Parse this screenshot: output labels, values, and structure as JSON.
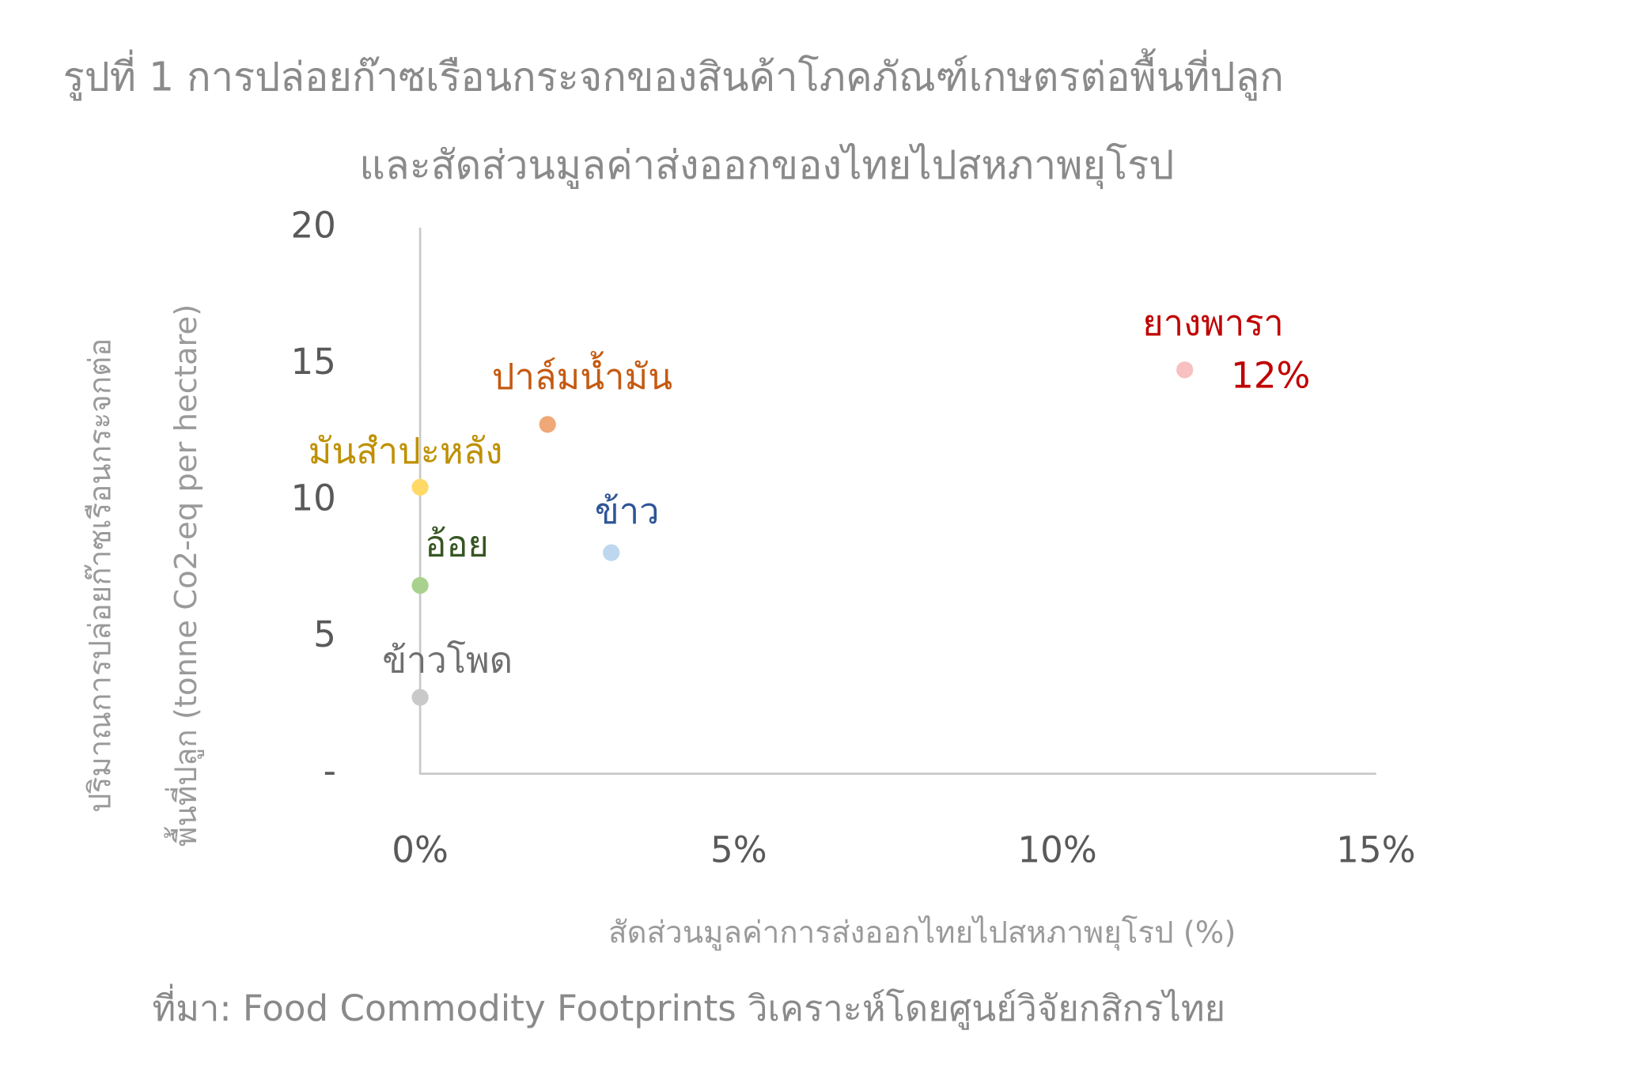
{
  "chart_data": {
    "type": "scatter",
    "title": [
      "รูปที่ 1 การปล่อยก๊าซเรือนกระจกของสินค้าโภคภัณฑ์เกษตรต่อพื้นที่ปลูก",
      "และสัดส่วนมูลค่าส่งออกของไทยไปสหภาพยุโรป"
    ],
    "x_label": "สัดส่วนมูลค่าการส่งออกไทยไปสหภาพยุโรป (%)",
    "y_label": [
      "ปริมาณการปล่อยก๊าซเรือนกระจกต่อ",
      "พื้นที่ปลูก  (tonne Co2-eq per hectare)"
    ],
    "source": "ที่มา: Food Commodity Footprints วิเคราะห์โดยศูนย์วิจัยกสิกรไทย",
    "xlim": [
      0,
      15
    ],
    "xticks": [
      {
        "value": 0,
        "label": "0%"
      },
      {
        "value": 5,
        "label": "5%"
      },
      {
        "value": 10,
        "label": "10%"
      },
      {
        "value": 15,
        "label": "15%"
      }
    ],
    "ylim": [
      0,
      20
    ],
    "yticks": [
      {
        "value": 0,
        "label": "-"
      },
      5,
      10,
      15,
      20
    ],
    "series": [
      {
        "name": "ยางพารา",
        "color": "#f8c0c0",
        "label_color": "#c00000",
        "x": [
          12
        ],
        "values": [
          14.8
        ],
        "x_labels": [
          "12%"
        ]
      },
      {
        "name": "ปาล์มน้ำมัน",
        "color": "#f0a878",
        "label_color": "#c55a11",
        "x": [
          2
        ],
        "values": [
          12.8
        ]
      },
      {
        "name": "มันสำปะหลัง",
        "color": "#ffd966",
        "label_color": "#bf9000",
        "x": [
          0
        ],
        "values": [
          10.5
        ]
      },
      {
        "name": "ข้าว",
        "color": "#bdd7ee",
        "label_color": "#2f5597",
        "x": [
          3
        ],
        "values": [
          8.1
        ]
      },
      {
        "name": "อ้อย",
        "color": "#a9d18e",
        "label_color": "#375623",
        "x": [
          0
        ],
        "values": [
          6.9
        ]
      },
      {
        "name": "ข้าวโพด",
        "color": "#c9c9c9",
        "label_color": "#6f6f6f",
        "x": [
          0
        ],
        "values": [
          2.8
        ]
      }
    ]
  }
}
